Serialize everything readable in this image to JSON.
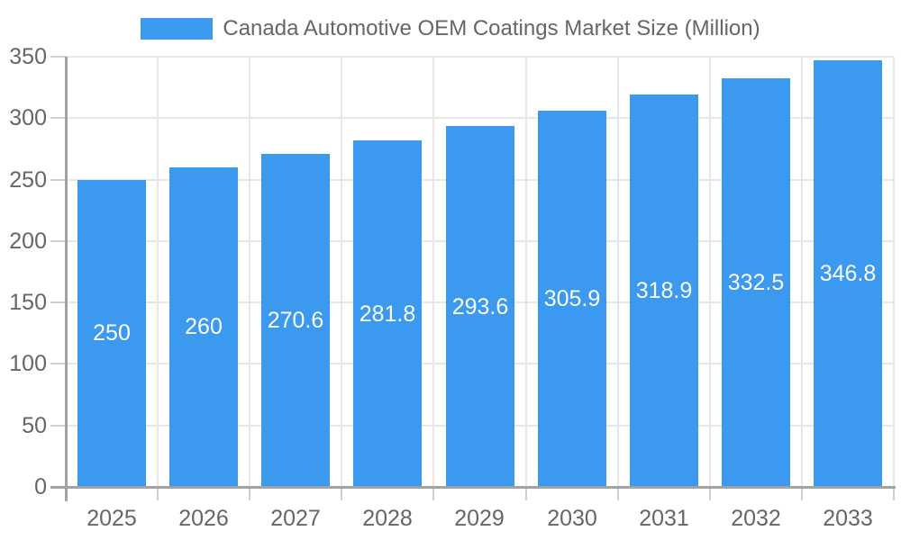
{
  "chart_data": {
    "type": "bar",
    "title": "Canada Automotive OEM Coatings Market Size (Million)",
    "categories": [
      "2025",
      "2026",
      "2027",
      "2028",
      "2029",
      "2030",
      "2031",
      "2032",
      "2033"
    ],
    "values": [
      250,
      260,
      270.6,
      281.8,
      293.6,
      305.9,
      318.9,
      332.5,
      346.8
    ],
    "value_labels": [
      "250",
      "260",
      "270.6",
      "281.8",
      "293.6",
      "305.9",
      "318.9",
      "332.5",
      "346.8"
    ],
    "xlabel": "",
    "ylabel": "",
    "ylim": [
      0,
      350
    ],
    "yticks": [
      0,
      50,
      100,
      150,
      200,
      250,
      300,
      350
    ],
    "ytick_labels": [
      "0",
      "50",
      "100",
      "150",
      "200",
      "250",
      "300",
      "350"
    ],
    "grid": true,
    "legend_position": "top",
    "colors": {
      "bar": "#3B99F0",
      "gridline": "#E7E7E7",
      "axis": "#A3A3A3",
      "tick": "#CFCFCF",
      "axis_label": "#666666",
      "bar_label": "#FFFFFF",
      "background": "#FFFFFF"
    }
  }
}
